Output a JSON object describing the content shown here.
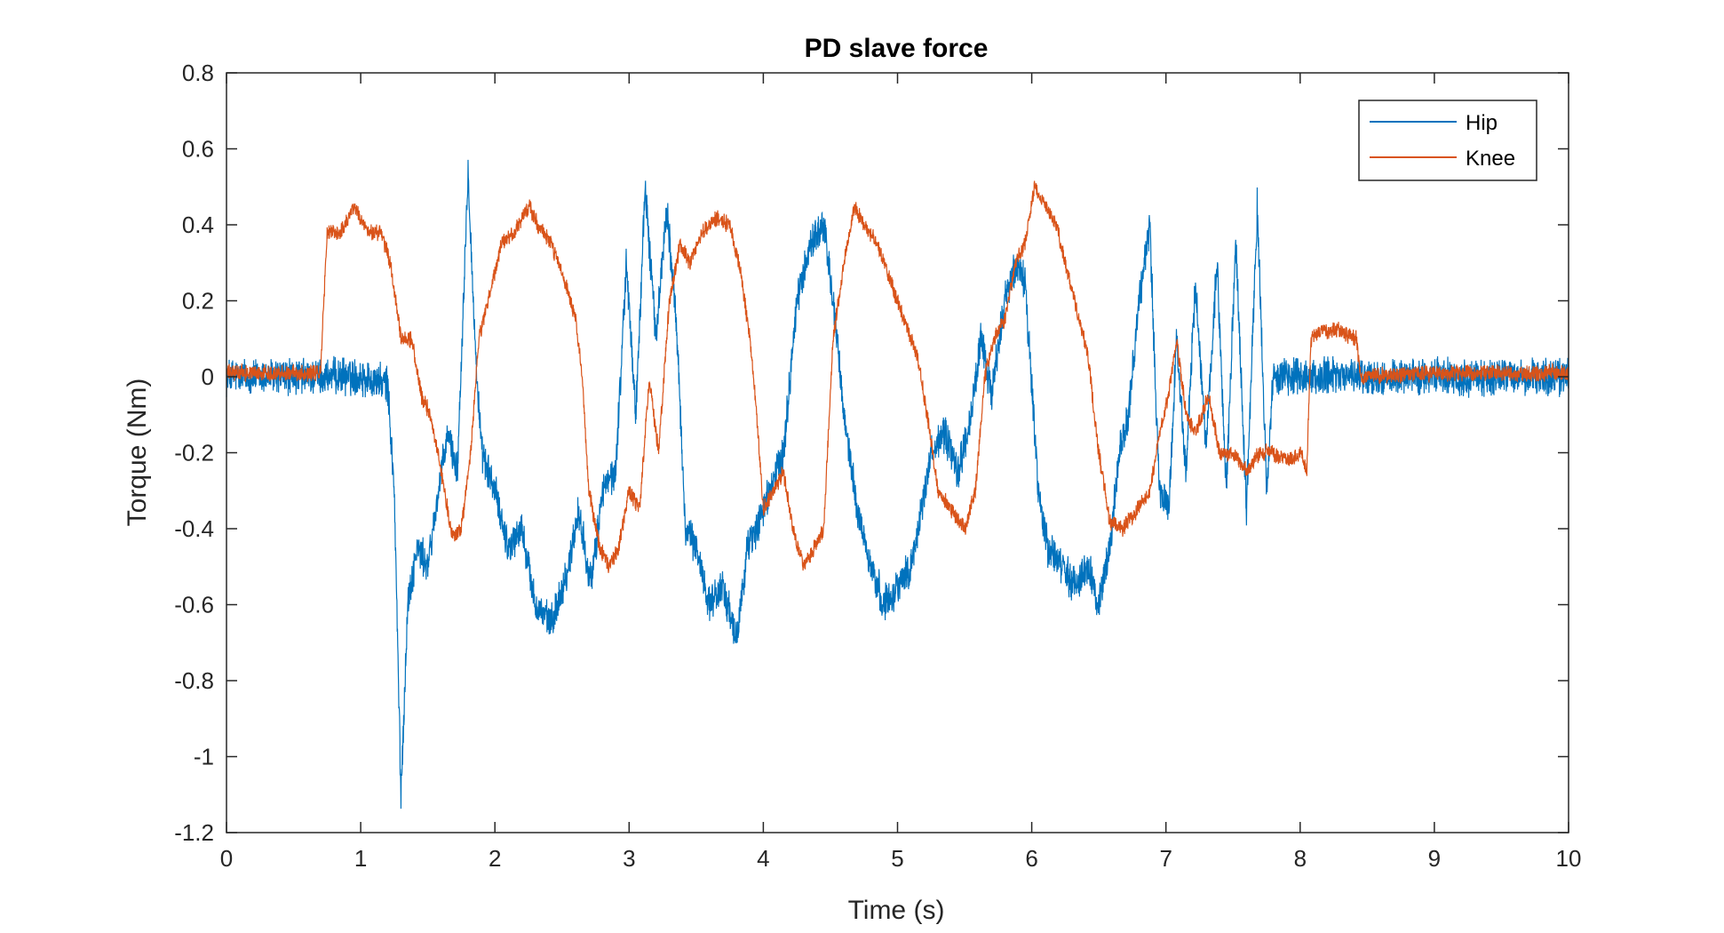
{
  "chart_data": {
    "type": "line",
    "title": "PD slave force",
    "xlabel": "Time (s)",
    "ylabel": "Torque (Nm)",
    "xlim": [
      0,
      10
    ],
    "ylim": [
      -1.2,
      0.8
    ],
    "x_ticks": [
      0,
      1,
      2,
      3,
      4,
      5,
      6,
      7,
      8,
      9,
      10
    ],
    "x_tick_labels": [
      "0",
      "1",
      "2",
      "3",
      "4",
      "5",
      "6",
      "7",
      "8",
      "9",
      "10"
    ],
    "y_ticks": [
      -1.2,
      -1.0,
      -0.8,
      -0.6,
      -0.4,
      -0.2,
      0,
      0.2,
      0.4,
      0.6,
      0.8
    ],
    "y_tick_labels": [
      "-1.2",
      "-1",
      "-0.8",
      "-0.6",
      "-0.4",
      "-0.2",
      "0",
      "0.2",
      "0.4",
      "0.6",
      "0.8"
    ],
    "grid": false,
    "legend_position": "top-right",
    "series": [
      {
        "name": "Hip",
        "color": "#0072BD",
        "noise": 0.04,
        "points": [
          [
            0,
            0
          ],
          [
            0.5,
            0
          ],
          [
            1.0,
            0
          ],
          [
            1.2,
            -0.02
          ],
          [
            1.25,
            -0.3
          ],
          [
            1.3,
            -1.1
          ],
          [
            1.35,
            -0.6
          ],
          [
            1.42,
            -0.45
          ],
          [
            1.5,
            -0.5
          ],
          [
            1.58,
            -0.3
          ],
          [
            1.65,
            -0.15
          ],
          [
            1.72,
            -0.25
          ],
          [
            1.8,
            0.55
          ],
          [
            1.85,
            0.1
          ],
          [
            1.9,
            -0.2
          ],
          [
            2.0,
            -0.3
          ],
          [
            2.1,
            -0.45
          ],
          [
            2.2,
            -0.4
          ],
          [
            2.3,
            -0.6
          ],
          [
            2.42,
            -0.65
          ],
          [
            2.55,
            -0.5
          ],
          [
            2.62,
            -0.35
          ],
          [
            2.72,
            -0.55
          ],
          [
            2.8,
            -0.3
          ],
          [
            2.9,
            -0.25
          ],
          [
            2.98,
            0.3
          ],
          [
            3.05,
            -0.1
          ],
          [
            3.12,
            0.5
          ],
          [
            3.2,
            0.1
          ],
          [
            3.28,
            0.45
          ],
          [
            3.35,
            0.15
          ],
          [
            3.42,
            -0.4
          ],
          [
            3.5,
            -0.45
          ],
          [
            3.6,
            -0.6
          ],
          [
            3.7,
            -0.55
          ],
          [
            3.8,
            -0.7
          ],
          [
            3.88,
            -0.45
          ],
          [
            3.95,
            -0.4
          ],
          [
            4.05,
            -0.3
          ],
          [
            4.15,
            -0.2
          ],
          [
            4.25,
            0.2
          ],
          [
            4.35,
            0.35
          ],
          [
            4.45,
            0.4
          ],
          [
            4.52,
            0.2
          ],
          [
            4.6,
            -0.1
          ],
          [
            4.7,
            -0.35
          ],
          [
            4.8,
            -0.5
          ],
          [
            4.9,
            -0.6
          ],
          [
            5.0,
            -0.55
          ],
          [
            5.1,
            -0.5
          ],
          [
            5.18,
            -0.35
          ],
          [
            5.25,
            -0.2
          ],
          [
            5.35,
            -0.15
          ],
          [
            5.45,
            -0.25
          ],
          [
            5.55,
            -0.1
          ],
          [
            5.62,
            0.1
          ],
          [
            5.7,
            -0.05
          ],
          [
            5.8,
            0.2
          ],
          [
            5.88,
            0.3
          ],
          [
            5.95,
            0.25
          ],
          [
            6.05,
            -0.3
          ],
          [
            6.12,
            -0.45
          ],
          [
            6.22,
            -0.5
          ],
          [
            6.32,
            -0.55
          ],
          [
            6.42,
            -0.5
          ],
          [
            6.5,
            -0.6
          ],
          [
            6.58,
            -0.45
          ],
          [
            6.65,
            -0.2
          ],
          [
            6.72,
            -0.1
          ],
          [
            6.8,
            0.2
          ],
          [
            6.88,
            0.4
          ],
          [
            6.95,
            -0.3
          ],
          [
            7.02,
            -0.35
          ],
          [
            7.08,
            0.1
          ],
          [
            7.15,
            -0.25
          ],
          [
            7.22,
            0.25
          ],
          [
            7.3,
            -0.2
          ],
          [
            7.38,
            0.3
          ],
          [
            7.45,
            -0.3
          ],
          [
            7.52,
            0.35
          ],
          [
            7.6,
            -0.35
          ],
          [
            7.68,
            0.45
          ],
          [
            7.75,
            -0.3
          ],
          [
            7.8,
            0.0
          ],
          [
            8.0,
            0
          ],
          [
            9.0,
            0
          ],
          [
            10,
            0
          ]
        ]
      },
      {
        "name": "Knee",
        "color": "#D95319",
        "noise": 0.018,
        "points": [
          [
            0,
            0.01
          ],
          [
            0.7,
            0.01
          ],
          [
            0.75,
            0.38
          ],
          [
            0.85,
            0.38
          ],
          [
            0.95,
            0.45
          ],
          [
            1.05,
            0.38
          ],
          [
            1.15,
            0.38
          ],
          [
            1.22,
            0.3
          ],
          [
            1.3,
            0.1
          ],
          [
            1.38,
            0.1
          ],
          [
            1.45,
            -0.05
          ],
          [
            1.52,
            -0.1
          ],
          [
            1.6,
            -0.25
          ],
          [
            1.68,
            -0.42
          ],
          [
            1.75,
            -0.4
          ],
          [
            1.82,
            -0.2
          ],
          [
            1.88,
            0.1
          ],
          [
            1.95,
            0.2
          ],
          [
            2.05,
            0.35
          ],
          [
            2.15,
            0.38
          ],
          [
            2.25,
            0.45
          ],
          [
            2.32,
            0.4
          ],
          [
            2.42,
            0.35
          ],
          [
            2.52,
            0.25
          ],
          [
            2.6,
            0.15
          ],
          [
            2.65,
            0.0
          ],
          [
            2.7,
            -0.3
          ],
          [
            2.78,
            -0.45
          ],
          [
            2.85,
            -0.5
          ],
          [
            2.92,
            -0.45
          ],
          [
            3.0,
            -0.3
          ],
          [
            3.08,
            -0.35
          ],
          [
            3.15,
            0.0
          ],
          [
            3.22,
            -0.2
          ],
          [
            3.3,
            0.2
          ],
          [
            3.38,
            0.35
          ],
          [
            3.45,
            0.3
          ],
          [
            3.55,
            0.38
          ],
          [
            3.65,
            0.42
          ],
          [
            3.75,
            0.4
          ],
          [
            3.82,
            0.3
          ],
          [
            3.9,
            0.1
          ],
          [
            3.95,
            -0.1
          ],
          [
            4.0,
            -0.35
          ],
          [
            4.08,
            -0.3
          ],
          [
            4.15,
            -0.25
          ],
          [
            4.22,
            -0.4
          ],
          [
            4.3,
            -0.5
          ],
          [
            4.38,
            -0.45
          ],
          [
            4.45,
            -0.4
          ],
          [
            4.52,
            0.1
          ],
          [
            4.6,
            0.3
          ],
          [
            4.68,
            0.45
          ],
          [
            4.75,
            0.4
          ],
          [
            4.85,
            0.35
          ],
          [
            4.95,
            0.25
          ],
          [
            5.05,
            0.15
          ],
          [
            5.15,
            0.05
          ],
          [
            5.22,
            -0.1
          ],
          [
            5.3,
            -0.3
          ],
          [
            5.4,
            -0.35
          ],
          [
            5.5,
            -0.4
          ],
          [
            5.58,
            -0.3
          ],
          [
            5.65,
            0.0
          ],
          [
            5.72,
            0.1
          ],
          [
            5.8,
            0.15
          ],
          [
            5.88,
            0.3
          ],
          [
            5.95,
            0.35
          ],
          [
            6.02,
            0.5
          ],
          [
            6.1,
            0.45
          ],
          [
            6.18,
            0.4
          ],
          [
            6.25,
            0.3
          ],
          [
            6.32,
            0.2
          ],
          [
            6.42,
            0.05
          ],
          [
            6.5,
            -0.2
          ],
          [
            6.58,
            -0.38
          ],
          [
            6.68,
            -0.4
          ],
          [
            6.78,
            -0.35
          ],
          [
            6.88,
            -0.3
          ],
          [
            6.95,
            -0.15
          ],
          [
            7.02,
            -0.05
          ],
          [
            7.08,
            0.1
          ],
          [
            7.15,
            -0.1
          ],
          [
            7.22,
            -0.15
          ],
          [
            7.32,
            -0.05
          ],
          [
            7.4,
            -0.2
          ],
          [
            7.5,
            -0.2
          ],
          [
            7.6,
            -0.25
          ],
          [
            7.7,
            -0.2
          ],
          [
            7.8,
            -0.2
          ],
          [
            7.9,
            -0.22
          ],
          [
            8.0,
            -0.2
          ],
          [
            8.05,
            -0.25
          ],
          [
            8.08,
            0.1
          ],
          [
            8.15,
            0.12
          ],
          [
            8.3,
            0.12
          ],
          [
            8.42,
            0.1
          ],
          [
            8.45,
            0.0
          ],
          [
            9.0,
            0.01
          ],
          [
            10,
            0.01
          ]
        ]
      }
    ]
  }
}
